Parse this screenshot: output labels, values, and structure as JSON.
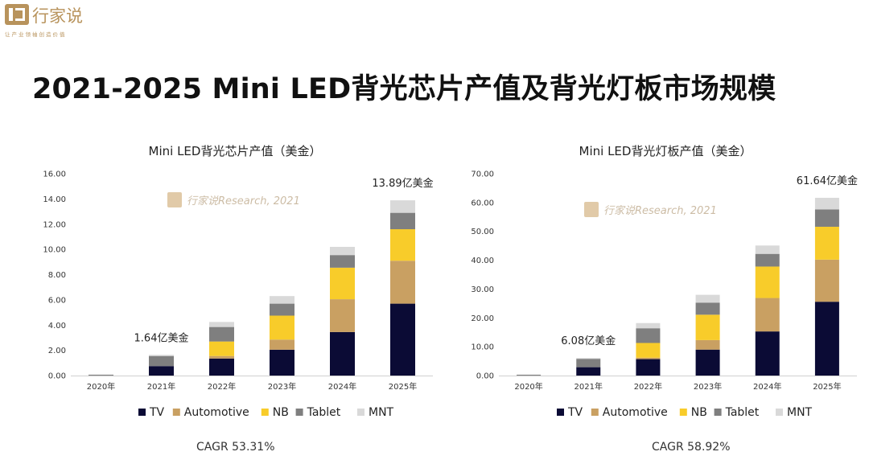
{
  "brand": {
    "name": "行家说",
    "slogan": "让产业领袖创造价值"
  },
  "page_title": "2021-2025 Mini LED背光芯片产值及背光灯板市场规模",
  "chart_data": [
    {
      "type": "bar",
      "stacked": true,
      "title": "Mini LED背光芯片产值（美金）",
      "watermark": "行家说Research, 2021",
      "categories": [
        "2020年",
        "2021年",
        "2022年",
        "2023年",
        "2024年",
        "2025年"
      ],
      "series": [
        {
          "name": "TV",
          "color": "#0b0b35",
          "values": [
            0.0,
            0.75,
            1.35,
            2.05,
            3.45,
            5.7
          ]
        },
        {
          "name": "Automotive",
          "color": "#c9a062",
          "values": [
            0.0,
            0.0,
            0.2,
            0.8,
            2.6,
            3.4
          ]
        },
        {
          "name": "NB",
          "color": "#f8cc2a",
          "values": [
            0.0,
            0.0,
            1.15,
            1.9,
            2.5,
            2.5
          ]
        },
        {
          "name": "Tablet",
          "color": "#7f7f7f",
          "values": [
            0.07,
            0.8,
            1.15,
            0.95,
            1.0,
            1.3
          ]
        },
        {
          "name": "MNT",
          "color": "#d9d9d9",
          "values": [
            0.0,
            0.09,
            0.4,
            0.6,
            0.65,
            0.99
          ]
        }
      ],
      "yticks": [
        "0.00",
        "2.00",
        "4.00",
        "6.00",
        "8.00",
        "10.00",
        "12.00",
        "14.00",
        "16.00"
      ],
      "ylim": [
        0,
        16
      ],
      "annotations": [
        {
          "text": "1.64亿美金",
          "category": "2021年",
          "value": 1.64
        },
        {
          "text": "13.89亿美金",
          "category": "2025年",
          "value": 13.89
        }
      ],
      "legend_position": "bottom",
      "cagr": "CAGR 53.31%"
    },
    {
      "type": "bar",
      "stacked": true,
      "title": "Mini LED背光灯板产值（美金）",
      "watermark": "行家说Research, 2021",
      "categories": [
        "2020年",
        "2021年",
        "2022年",
        "2023年",
        "2024年",
        "2025年"
      ],
      "series": [
        {
          "name": "TV",
          "color": "#0b0b35",
          "values": [
            0.0,
            2.9,
            5.7,
            9.0,
            15.3,
            25.6
          ]
        },
        {
          "name": "Automotive",
          "color": "#c9a062",
          "values": [
            0.0,
            0.0,
            0.5,
            3.3,
            11.6,
            14.6
          ]
        },
        {
          "name": "NB",
          "color": "#f8cc2a",
          "values": [
            0.0,
            0.0,
            5.1,
            8.8,
            10.9,
            11.4
          ]
        },
        {
          "name": "Tablet",
          "color": "#7f7f7f",
          "values": [
            0.3,
            2.9,
            5.1,
            4.2,
            4.4,
            6.0
          ]
        },
        {
          "name": "MNT",
          "color": "#d9d9d9",
          "values": [
            0.0,
            0.28,
            1.8,
            2.7,
            2.9,
            4.04
          ]
        }
      ],
      "yticks": [
        "0.00",
        "10.00",
        "20.00",
        "30.00",
        "40.00",
        "50.00",
        "60.00",
        "70.00"
      ],
      "ylim": [
        0,
        70
      ],
      "annotations": [
        {
          "text": "6.08亿美金",
          "category": "2021年",
          "value": 6.08
        },
        {
          "text": "61.64亿美金",
          "category": "2025年",
          "value": 61.64
        }
      ],
      "legend_position": "bottom",
      "cagr": "CAGR 58.92%"
    }
  ]
}
